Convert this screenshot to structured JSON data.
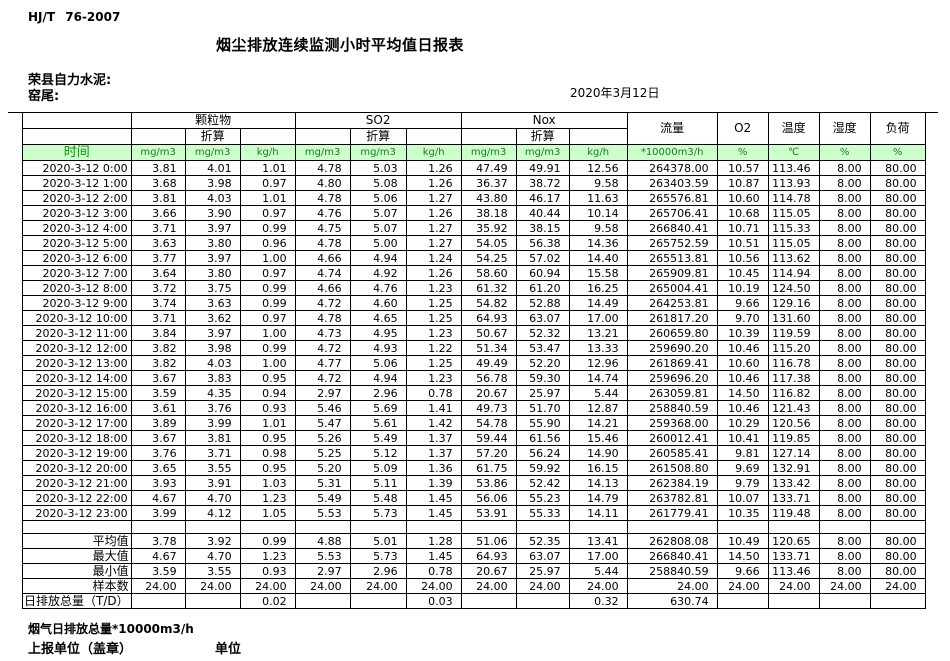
{
  "page": {
    "standard": "HJ/T 76-2007",
    "title": "烟尘排放连续监测小时平均值日报表",
    "company": "荣县自力水泥:",
    "station": "窑尾:",
    "date": "2020年3月12日"
  },
  "colors": {
    "units_row_bg": "#ccffcc",
    "units_row_text": "#1e7a1e",
    "time_label_text": "#009900",
    "border": "#000000"
  },
  "table": {
    "time_label": "时间",
    "zhesuan": "折算",
    "groups": {
      "pm": "颗粒物",
      "so2": "SO2",
      "nox": "Nox",
      "flow": "流量",
      "o2": "O2",
      "temp": "温度",
      "humidity": "湿度",
      "load": "负荷"
    },
    "units": [
      "mg/m3",
      "mg/m3",
      "kg/h",
      "mg/m3",
      "mg/m3",
      "kg/h",
      "mg/m3",
      "mg/m3",
      "kg/h",
      "*10000m3/h",
      "%",
      "℃",
      "%",
      "%"
    ],
    "rows": [
      {
        "time": "2020-3-12 0:00",
        "values": [
          "3.81",
          "4.01",
          "1.01",
          "4.78",
          "5.03",
          "1.26",
          "47.49",
          "49.91",
          "12.56",
          "264378.00",
          "10.57",
          "113.46",
          "8.00",
          "80.00"
        ]
      },
      {
        "time": "2020-3-12 1:00",
        "values": [
          "3.68",
          "3.98",
          "0.97",
          "4.80",
          "5.08",
          "1.26",
          "36.37",
          "38.72",
          "9.58",
          "263403.59",
          "10.87",
          "113.93",
          "8.00",
          "80.00"
        ]
      },
      {
        "time": "2020-3-12 2:00",
        "values": [
          "3.81",
          "4.03",
          "1.01",
          "4.78",
          "5.06",
          "1.27",
          "43.80",
          "46.17",
          "11.63",
          "265576.81",
          "10.60",
          "114.78",
          "8.00",
          "80.00"
        ]
      },
      {
        "time": "2020-3-12 3:00",
        "values": [
          "3.66",
          "3.90",
          "0.97",
          "4.76",
          "5.07",
          "1.26",
          "38.18",
          "40.44",
          "10.14",
          "265706.41",
          "10.68",
          "115.05",
          "8.00",
          "80.00"
        ]
      },
      {
        "time": "2020-3-12 4:00",
        "values": [
          "3.71",
          "3.97",
          "0.99",
          "4.75",
          "5.07",
          "1.27",
          "35.92",
          "38.15",
          "9.58",
          "266840.41",
          "10.71",
          "115.33",
          "8.00",
          "80.00"
        ]
      },
      {
        "time": "2020-3-12 5:00",
        "values": [
          "3.63",
          "3.80",
          "0.96",
          "4.78",
          "5.00",
          "1.27",
          "54.05",
          "56.38",
          "14.36",
          "265752.59",
          "10.51",
          "115.05",
          "8.00",
          "80.00"
        ]
      },
      {
        "time": "2020-3-12 6:00",
        "values": [
          "3.77",
          "3.97",
          "1.00",
          "4.66",
          "4.94",
          "1.24",
          "54.25",
          "57.02",
          "14.40",
          "265513.81",
          "10.56",
          "113.62",
          "8.00",
          "80.00"
        ]
      },
      {
        "time": "2020-3-12 7:00",
        "values": [
          "3.64",
          "3.80",
          "0.97",
          "4.74",
          "4.92",
          "1.26",
          "58.60",
          "60.94",
          "15.58",
          "265909.81",
          "10.45",
          "114.94",
          "8.00",
          "80.00"
        ]
      },
      {
        "time": "2020-3-12 8:00",
        "values": [
          "3.72",
          "3.75",
          "0.99",
          "4.66",
          "4.76",
          "1.23",
          "61.32",
          "61.20",
          "16.25",
          "265004.41",
          "10.19",
          "124.50",
          "8.00",
          "80.00"
        ]
      },
      {
        "time": "2020-3-12 9:00",
        "values": [
          "3.74",
          "3.63",
          "0.99",
          "4.72",
          "4.60",
          "1.25",
          "54.82",
          "52.88",
          "14.49",
          "264253.81",
          "9.66",
          "129.16",
          "8.00",
          "80.00"
        ]
      },
      {
        "time": "2020-3-12 10:00",
        "values": [
          "3.71",
          "3.62",
          "0.97",
          "4.78",
          "4.65",
          "1.25",
          "64.93",
          "63.07",
          "17.00",
          "261817.20",
          "9.70",
          "131.60",
          "8.00",
          "80.00"
        ]
      },
      {
        "time": "2020-3-12 11:00",
        "values": [
          "3.84",
          "3.97",
          "1.00",
          "4.73",
          "4.95",
          "1.23",
          "50.67",
          "52.32",
          "13.21",
          "260659.80",
          "10.39",
          "119.59",
          "8.00",
          "80.00"
        ]
      },
      {
        "time": "2020-3-12 12:00",
        "values": [
          "3.82",
          "3.98",
          "0.99",
          "4.72",
          "4.93",
          "1.22",
          "51.34",
          "53.47",
          "13.33",
          "259690.20",
          "10.46",
          "115.20",
          "8.00",
          "80.00"
        ]
      },
      {
        "time": "2020-3-12 13:00",
        "values": [
          "3.82",
          "4.03",
          "1.00",
          "4.77",
          "5.06",
          "1.25",
          "49.49",
          "52.20",
          "12.96",
          "261869.41",
          "10.60",
          "116.78",
          "8.00",
          "80.00"
        ]
      },
      {
        "time": "2020-3-12 14:00",
        "values": [
          "3.67",
          "3.83",
          "0.95",
          "4.72",
          "4.94",
          "1.23",
          "56.78",
          "59.30",
          "14.74",
          "259696.20",
          "10.46",
          "117.38",
          "8.00",
          "80.00"
        ]
      },
      {
        "time": "2020-3-12 15:00",
        "values": [
          "3.59",
          "4.35",
          "0.94",
          "2.97",
          "2.96",
          "0.78",
          "20.67",
          "25.97",
          "5.44",
          "263059.81",
          "14.50",
          "116.82",
          "8.00",
          "80.00"
        ]
      },
      {
        "time": "2020-3-12 16:00",
        "values": [
          "3.61",
          "3.76",
          "0.93",
          "5.46",
          "5.69",
          "1.41",
          "49.73",
          "51.70",
          "12.87",
          "258840.59",
          "10.46",
          "121.43",
          "8.00",
          "80.00"
        ]
      },
      {
        "time": "2020-3-12 17:00",
        "values": [
          "3.89",
          "3.99",
          "1.01",
          "5.47",
          "5.61",
          "1.42",
          "54.78",
          "55.90",
          "14.21",
          "259368.00",
          "10.29",
          "120.56",
          "8.00",
          "80.00"
        ]
      },
      {
        "time": "2020-3-12 18:00",
        "values": [
          "3.67",
          "3.81",
          "0.95",
          "5.26",
          "5.49",
          "1.37",
          "59.44",
          "61.56",
          "15.46",
          "260012.41",
          "10.41",
          "119.85",
          "8.00",
          "80.00"
        ]
      },
      {
        "time": "2020-3-12 19:00",
        "values": [
          "3.76",
          "3.71",
          "0.98",
          "5.25",
          "5.12",
          "1.37",
          "57.20",
          "56.24",
          "14.90",
          "260585.41",
          "9.81",
          "127.14",
          "8.00",
          "80.00"
        ]
      },
      {
        "time": "2020-3-12 20:00",
        "values": [
          "3.65",
          "3.55",
          "0.95",
          "5.20",
          "5.09",
          "1.36",
          "61.75",
          "59.92",
          "16.15",
          "261508.80",
          "9.69",
          "132.91",
          "8.00",
          "80.00"
        ]
      },
      {
        "time": "2020-3-12 21:00",
        "values": [
          "3.93",
          "3.91",
          "1.03",
          "5.31",
          "5.11",
          "1.39",
          "53.86",
          "52.42",
          "14.13",
          "262384.19",
          "9.79",
          "133.42",
          "8.00",
          "80.00"
        ]
      },
      {
        "time": "2020-3-12 22:00",
        "values": [
          "4.67",
          "4.70",
          "1.23",
          "5.49",
          "5.48",
          "1.45",
          "56.06",
          "55.23",
          "14.79",
          "263782.81",
          "10.07",
          "133.71",
          "8.00",
          "80.00"
        ]
      },
      {
        "time": "2020-3-12 23:00",
        "values": [
          "3.99",
          "4.12",
          "1.05",
          "5.53",
          "5.73",
          "1.45",
          "53.91",
          "55.33",
          "14.11",
          "261779.41",
          "10.35",
          "119.48",
          "8.00",
          "80.00"
        ]
      }
    ],
    "summary": [
      {
        "label": "平均值",
        "values": [
          "3.78",
          "3.92",
          "0.99",
          "4.88",
          "5.01",
          "1.28",
          "51.06",
          "52.35",
          "13.41",
          "262808.08",
          "10.49",
          "120.65",
          "8.00",
          "80.00"
        ]
      },
      {
        "label": "最大值",
        "values": [
          "4.67",
          "4.70",
          "1.23",
          "5.53",
          "5.73",
          "1.45",
          "64.93",
          "63.07",
          "17.00",
          "266840.41",
          "14.50",
          "133.71",
          "8.00",
          "80.00"
        ]
      },
      {
        "label": "最小值",
        "values": [
          "3.59",
          "3.55",
          "0.93",
          "2.97",
          "2.96",
          "0.78",
          "20.67",
          "25.97",
          "5.44",
          "258840.59",
          "9.66",
          "113.46",
          "8.00",
          "80.00"
        ]
      },
      {
        "label": "样本数",
        "values": [
          "24.00",
          "24.00",
          "24.00",
          "24.00",
          "24.00",
          "24.00",
          "24.00",
          "24.00",
          "24.00",
          "24.00",
          "24.00",
          "24.00",
          "24.00",
          "24.00"
        ]
      },
      {
        "label": "日排放总量（T/D）",
        "values": [
          "",
          "",
          "0.02",
          "",
          "",
          "0.03",
          "",
          "",
          "0.32",
          "630.74",
          "",
          "",
          "",
          ""
        ]
      }
    ]
  },
  "footer": {
    "note": "烟气日排放总量*10000m3/h",
    "report_unit_label": "上报单位（盖章）",
    "unit_label": "单位"
  }
}
